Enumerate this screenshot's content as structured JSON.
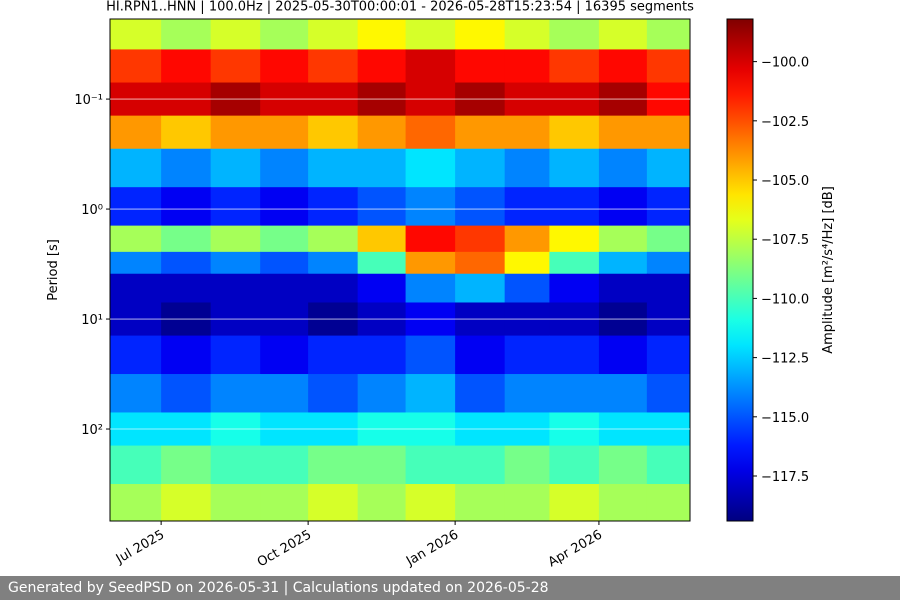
{
  "chart_data": {
    "type": "heatmap",
    "title": "HI.RPN1..HNN | 100.0Hz | 2025-05-30T00:00:01 - 2026-05-28T15:23:54 | 16395 segments",
    "ylabel": "Period [s]",
    "colorbar_label": "Amplitude [m²/s⁴/Hz] [dB]",
    "colormap": "jet",
    "x": [
      "2025-06",
      "2025-07",
      "2025-08",
      "2025-09",
      "2025-10",
      "2025-11",
      "2025-12",
      "2026-01",
      "2026-02",
      "2026-03",
      "2026-04",
      "2026-05"
    ],
    "y": [
      0.025,
      0.05,
      0.1,
      0.2,
      0.4,
      1,
      2,
      3,
      5,
      10,
      20,
      50,
      100,
      200,
      500
    ],
    "z": [
      [
        -107,
        -108,
        -107,
        -108,
        -107,
        -106,
        -107,
        -106,
        -107,
        -108,
        -107,
        -108
      ],
      [
        -102,
        -101,
        -102,
        -101,
        -102,
        -101,
        -100,
        -101,
        -101,
        -102,
        -101,
        -102
      ],
      [
        -100,
        -100,
        -99,
        -100,
        -100,
        -99,
        -100,
        -99,
        -100,
        -100,
        -99,
        -101
      ],
      [
        -104,
        -105,
        -104,
        -104,
        -105,
        -104,
        -103,
        -104,
        -104,
        -105,
        -104,
        -104
      ],
      [
        -113,
        -114,
        -113,
        -114,
        -113,
        -113,
        -112,
        -113,
        -114,
        -113,
        -114,
        -113
      ],
      [
        -116,
        -117,
        -116,
        -117,
        -116,
        -115,
        -114,
        -115,
        -116,
        -116,
        -117,
        -116
      ],
      [
        -108,
        -109,
        -108,
        -109,
        -108,
        -105,
        -101,
        -102,
        -104,
        -106,
        -108,
        -109
      ],
      [
        -114,
        -115,
        -114,
        -115,
        -114,
        -110,
        -104,
        -103,
        -106,
        -110,
        -113,
        -114
      ],
      [
        -118,
        -118,
        -118,
        -118,
        -118,
        -117,
        -114,
        -113,
        -115,
        -117,
        -118,
        -118
      ],
      [
        -118,
        -119,
        -118,
        -118,
        -119,
        -118,
        -117,
        -118,
        -118,
        -118,
        -119,
        -118
      ],
      [
        -116,
        -117,
        -116,
        -117,
        -116,
        -116,
        -115,
        -117,
        -116,
        -116,
        -117,
        -116
      ],
      [
        -114,
        -115,
        -114,
        -114,
        -115,
        -114,
        -113,
        -115,
        -114,
        -114,
        -114,
        -115
      ],
      [
        -112,
        -112,
        -111,
        -112,
        -112,
        -111,
        -111,
        -112,
        -112,
        -111,
        -112,
        -112
      ],
      [
        -110,
        -109,
        -110,
        -110,
        -109,
        -109,
        -110,
        -110,
        -109,
        -110,
        -109,
        -110
      ],
      [
        -108,
        -107,
        -108,
        -108,
        -107,
        -108,
        -107,
        -108,
        -108,
        -107,
        -108,
        -108
      ]
    ],
    "xlim": [
      "2025-05-30",
      "2026-05-28"
    ],
    "xticks": [
      {
        "value": "2025-07-01",
        "label": "Jul 2025"
      },
      {
        "value": "2025-10-01",
        "label": "Oct 2025"
      },
      {
        "value": "2026-01-01",
        "label": "Jan 2026"
      },
      {
        "value": "2026-04-01",
        "label": "Apr 2026"
      }
    ],
    "ylim": [
      0.0187,
      686
    ],
    "ylog": true,
    "yticks": [
      {
        "value": 0.1,
        "label": "10⁻¹"
      },
      {
        "value": 1,
        "label": "10⁰"
      },
      {
        "value": 10,
        "label": "10¹"
      },
      {
        "value": 100,
        "label": "10²"
      }
    ],
    "grid": true,
    "clim": [
      -119.4,
      -98.2
    ],
    "cticks": [
      {
        "value": -100,
        "label": "−100.0"
      },
      {
        "value": -102.5,
        "label": "−102.5"
      },
      {
        "value": -105,
        "label": "−105.0"
      },
      {
        "value": -107.5,
        "label": "−107.5"
      },
      {
        "value": -110,
        "label": "−110.0"
      },
      {
        "value": -112.5,
        "label": "−112.5"
      },
      {
        "value": -115,
        "label": "−115.0"
      },
      {
        "value": -117.5,
        "label": "−117.5"
      }
    ]
  },
  "footer": "Generated by SeedPSD on 2026-05-31 | Calculations updated on 2026-05-28"
}
